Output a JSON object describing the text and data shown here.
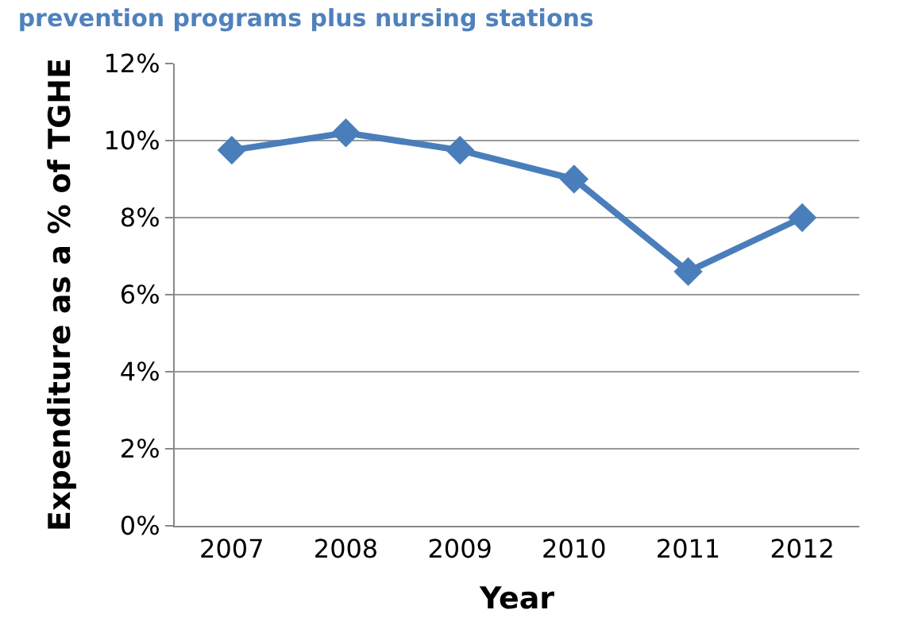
{
  "chart_data": {
    "type": "line",
    "title": "prevention programs plus nursing stations",
    "xlabel": "Year",
    "ylabel": "Expenditure as a % of TGHE",
    "categories": [
      "2007",
      "2008",
      "2009",
      "2010",
      "2011",
      "2012"
    ],
    "series": [
      {
        "color": "#4a7ebb",
        "values": [
          9.75,
          10.2,
          9.75,
          9.0,
          6.6,
          8.0
        ]
      }
    ],
    "ylim": [
      0,
      12
    ],
    "yticks": [
      {
        "value": 0,
        "label": "0%"
      },
      {
        "value": 2,
        "label": "2%"
      },
      {
        "value": 4,
        "label": "4%"
      },
      {
        "value": 6,
        "label": "6%"
      },
      {
        "value": 8,
        "label": "8%"
      },
      {
        "value": 10,
        "label": "10%"
      },
      {
        "value": 12,
        "label": "12%"
      }
    ],
    "grid": "y",
    "marker": "diamond",
    "line_style": "solid",
    "legend": false
  }
}
